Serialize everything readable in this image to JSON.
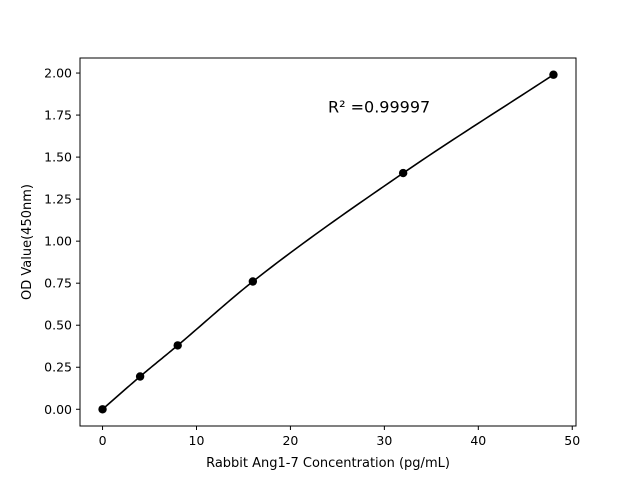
{
  "chart_data": {
    "type": "scatter",
    "title": "",
    "xlabel": "Rabbit Ang1-7 Concentration (pg/mL)",
    "ylabel": "OD Value(450nm)",
    "xlim": [
      -2.4,
      50.4
    ],
    "ylim": [
      -0.0995,
      2.0895
    ],
    "x_ticks": [
      0,
      10,
      20,
      30,
      40,
      50
    ],
    "x_tick_labels": [
      "0",
      "10",
      "20",
      "30",
      "40",
      "50"
    ],
    "y_ticks": [
      0.0,
      0.25,
      0.5,
      0.75,
      1.0,
      1.25,
      1.5,
      1.75,
      2.0
    ],
    "y_tick_labels": [
      "0.00",
      "0.25",
      "0.50",
      "0.75",
      "1.00",
      "1.25",
      "1.50",
      "1.75",
      "2.00"
    ],
    "grid": false,
    "legend": "none",
    "series": [
      {
        "x": [
          0,
          4,
          8,
          16,
          32,
          48
        ],
        "y": [
          0.0,
          0.195,
          0.38,
          0.76,
          1.405,
          1.99
        ],
        "color": "#000000",
        "marker": "circle",
        "fit_curve": true
      }
    ],
    "annotations": [
      {
        "text": "R² =0.99997",
        "x": 24,
        "y": 1.8
      }
    ]
  }
}
